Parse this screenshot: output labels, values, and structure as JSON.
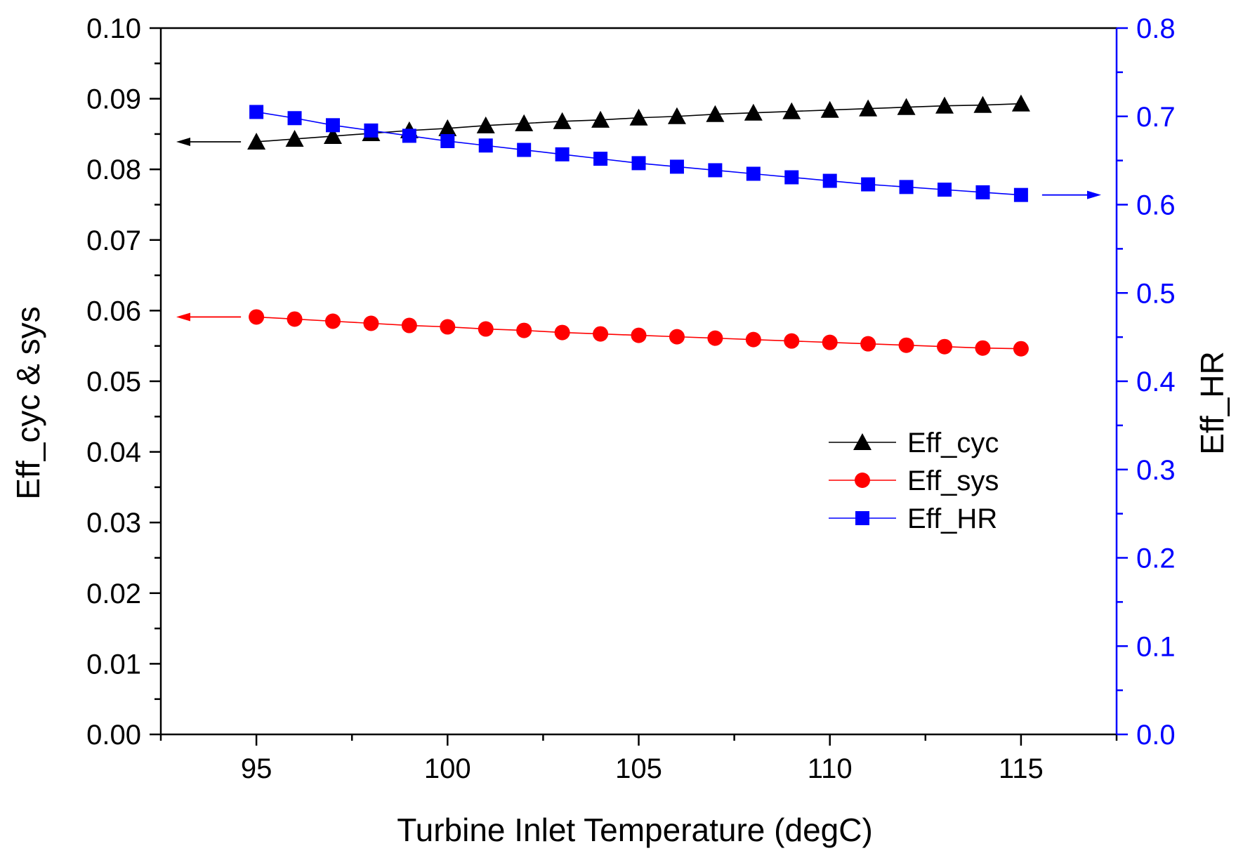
{
  "chart_data": {
    "type": "line",
    "xlabel": "Turbine Inlet Temperature (degC)",
    "ylabel_left": "Eff_cyc & sys",
    "ylabel_right": "Eff_HR",
    "xlim": [
      92.5,
      117.5
    ],
    "ylim_left": [
      0.0,
      0.1
    ],
    "ylim_right": [
      0.0,
      0.8
    ],
    "x_ticks": [
      "95",
      "100",
      "105",
      "110",
      "115"
    ],
    "y_left_ticks": [
      "0.00",
      "0.01",
      "0.02",
      "0.03",
      "0.04",
      "0.05",
      "0.06",
      "0.07",
      "0.08",
      "0.09",
      "0.10"
    ],
    "y_right_ticks": [
      "0.0",
      "0.1",
      "0.2",
      "0.3",
      "0.4",
      "0.5",
      "0.6",
      "0.7",
      "0.8"
    ],
    "x": [
      95,
      96,
      97,
      98,
      99,
      100,
      101,
      102,
      103,
      104,
      105,
      106,
      107,
      108,
      109,
      110,
      111,
      112,
      113,
      114,
      115
    ],
    "series": [
      {
        "name": "Eff_cyc",
        "axis": "left",
        "marker": "triangle",
        "color": "#000000",
        "values": [
          0.0839,
          0.0843,
          0.0847,
          0.0851,
          0.0855,
          0.0858,
          0.0862,
          0.0865,
          0.0868,
          0.087,
          0.0873,
          0.0875,
          0.0878,
          0.088,
          0.0882,
          0.0884,
          0.0886,
          0.0888,
          0.089,
          0.0891,
          0.0893
        ]
      },
      {
        "name": "Eff_sys",
        "axis": "left",
        "marker": "circle",
        "color": "#ff0000",
        "values": [
          0.0591,
          0.0588,
          0.0585,
          0.0582,
          0.0579,
          0.0577,
          0.0574,
          0.0572,
          0.0569,
          0.0567,
          0.0565,
          0.0563,
          0.0561,
          0.0559,
          0.0557,
          0.0555,
          0.0553,
          0.0551,
          0.0549,
          0.0547,
          0.0546
        ]
      },
      {
        "name": "Eff_HR",
        "axis": "right",
        "marker": "square",
        "color": "#0000ff",
        "values": [
          0.705,
          0.698,
          0.69,
          0.684,
          0.678,
          0.672,
          0.667,
          0.662,
          0.657,
          0.652,
          0.647,
          0.643,
          0.639,
          0.635,
          0.631,
          0.627,
          0.623,
          0.62,
          0.617,
          0.614,
          0.611
        ]
      }
    ],
    "annotations": [
      {
        "type": "arrow",
        "direction": "left",
        "series": "Eff_cyc",
        "color": "#000000"
      },
      {
        "type": "arrow",
        "direction": "left",
        "series": "Eff_sys",
        "color": "#ff0000"
      },
      {
        "type": "arrow",
        "direction": "right",
        "series": "Eff_HR",
        "color": "#0000ff"
      }
    ],
    "legend": {
      "position": "center-right",
      "entries": [
        "Eff_cyc",
        "Eff_sys",
        "Eff_HR"
      ]
    },
    "right_axis_color": "#0000ff",
    "grid": false
  }
}
